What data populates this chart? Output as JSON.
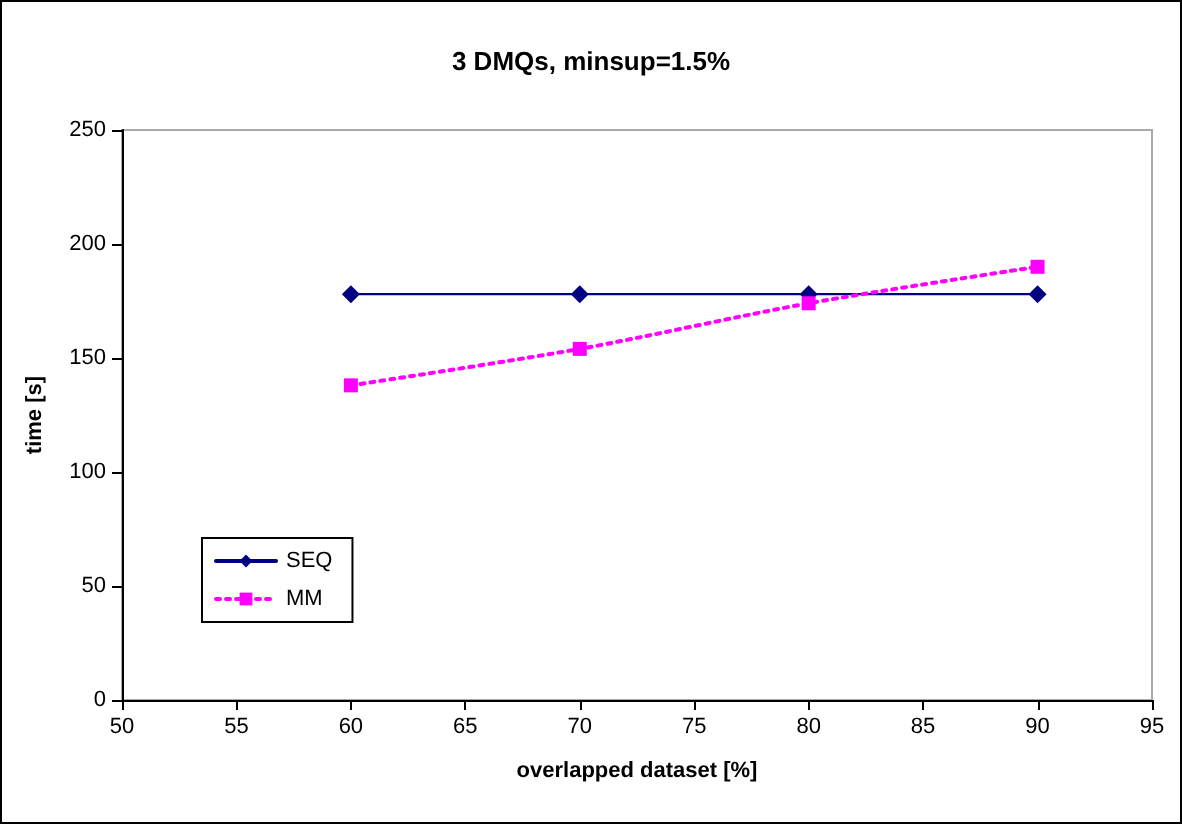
{
  "chart_data": {
    "type": "line",
    "title": "3 DMQs, minsup=1.5%",
    "xlabel": "overlapped dataset [%]",
    "ylabel": "time [s]",
    "x": [
      60,
      70,
      80,
      90
    ],
    "series": [
      {
        "name": "SEQ",
        "color": "#000080",
        "values": [
          178,
          178,
          178,
          178
        ],
        "marker": "diamond",
        "line_style": "solid"
      },
      {
        "name": "MM",
        "color": "#ff00ff",
        "values": [
          138,
          154,
          174,
          190
        ],
        "marker": "square",
        "line_style": "dotted"
      }
    ],
    "xlim": [
      50,
      95
    ],
    "xticks": [
      50,
      55,
      60,
      65,
      70,
      75,
      80,
      85,
      90,
      95
    ],
    "ylim": [
      0,
      250
    ],
    "yticks": [
      0,
      50,
      100,
      150,
      200,
      250
    ],
    "grid": false,
    "legend": "bottom left"
  }
}
